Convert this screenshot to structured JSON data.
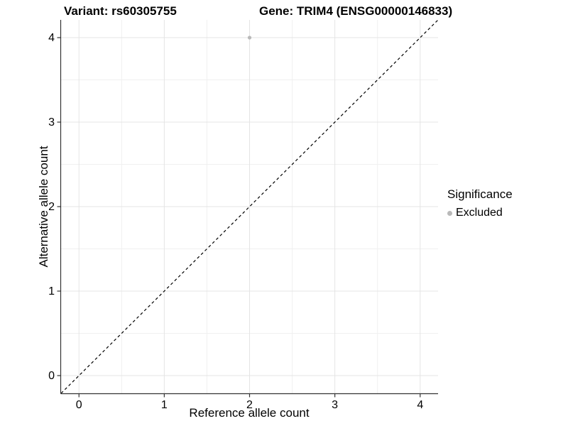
{
  "chart_data": {
    "type": "scatter",
    "title_left": "Variant: rs60305755",
    "title_right": "Gene: TRIM4 (ENSG00000146833)",
    "xlabel": "Reference allele count",
    "ylabel": "Alternative allele count",
    "xlim": [
      -0.21,
      4.21
    ],
    "ylim": [
      -0.21,
      4.21
    ],
    "xticks": [
      0,
      1,
      2,
      3,
      4
    ],
    "yticks": [
      0,
      1,
      2,
      3,
      4
    ],
    "minor_xticks": [
      0.5,
      1.5,
      2.5,
      3.5
    ],
    "minor_yticks": [
      0.5,
      1.5,
      2.5,
      3.5
    ],
    "grid": "major-and-minor",
    "identity_line": {
      "style": "dashed",
      "from": [
        -0.21,
        -0.21
      ],
      "to": [
        4.21,
        4.21
      ],
      "color": "#000000"
    },
    "series": [
      {
        "name": "Excluded",
        "color": "#b9b9b9",
        "points": [
          {
            "x": 2,
            "y": 4
          }
        ]
      }
    ],
    "legend": {
      "title": "Significance",
      "position": "right",
      "items": [
        {
          "label": "Excluded",
          "color": "#b9b9b9"
        }
      ]
    }
  },
  "colors": {
    "background": "#ffffff",
    "grid_major": "#e4e4e4",
    "grid_minor": "#f0f0f0",
    "axis_line": "#333333",
    "point": "#b9b9b9",
    "identity_line": "#000000",
    "text": "#000000"
  }
}
